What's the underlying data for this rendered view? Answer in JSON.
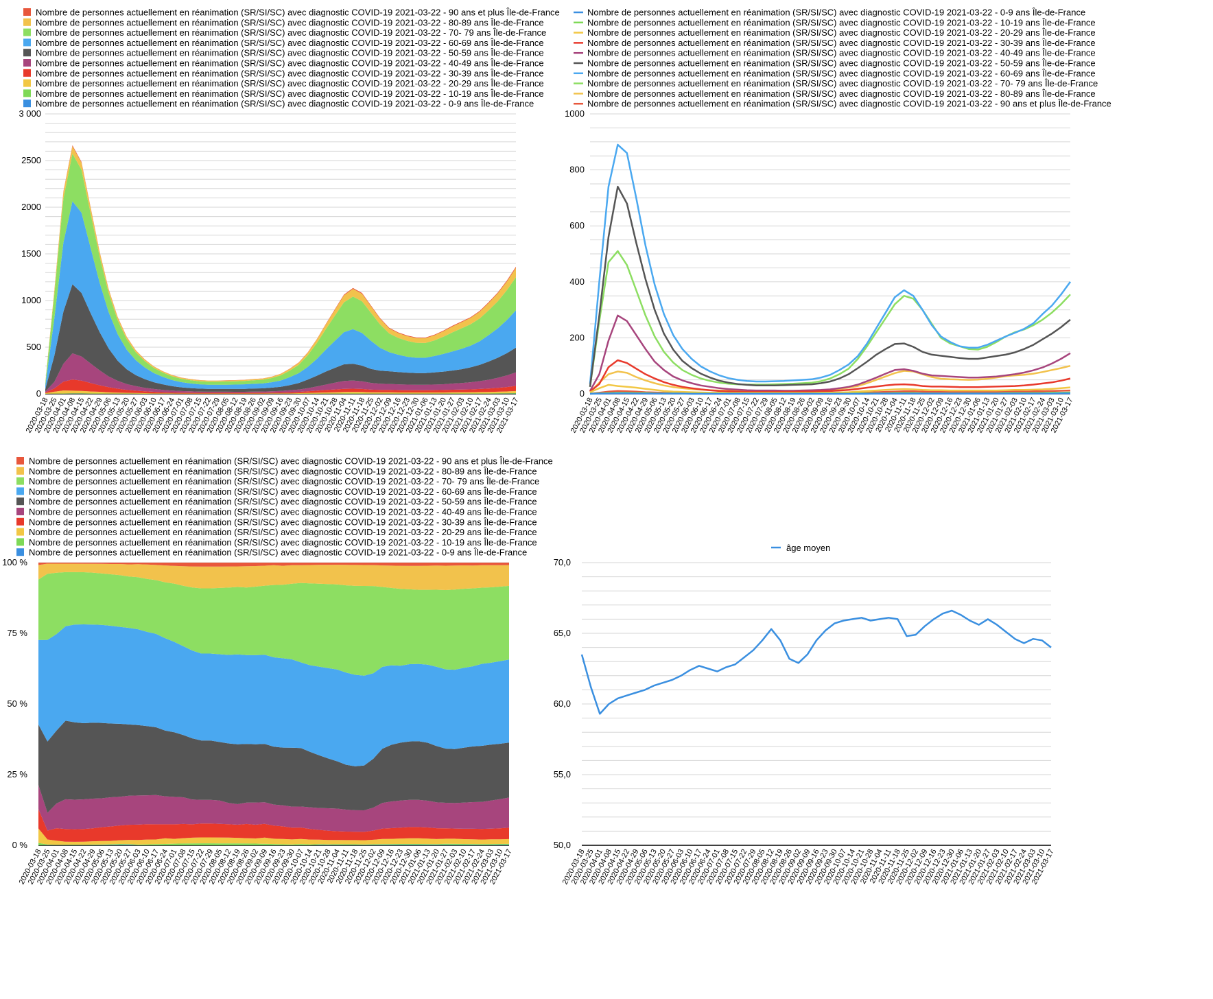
{
  "colors": {
    "grid": "#d6d6d6",
    "axis": "#000000",
    "age_line": "#3a8fe0"
  },
  "x_dates": [
    "2020-03-18",
    "2020-03-25",
    "2020-04-01",
    "2020-04-08",
    "2020-04-15",
    "2020-04-22",
    "2020-04-29",
    "2020-05-06",
    "2020-05-13",
    "2020-05-20",
    "2020-05-27",
    "2020-06-03",
    "2020-06-10",
    "2020-06-17",
    "2020-06-24",
    "2020-07-01",
    "2020-07-08",
    "2020-07-15",
    "2020-07-22",
    "2020-07-29",
    "2020-08-05",
    "2020-08-12",
    "2020-08-19",
    "2020-08-26",
    "2020-09-02",
    "2020-09-09",
    "2020-09-16",
    "2020-09-23",
    "2020-09-30",
    "2020-10-07",
    "2020-10-14",
    "2020-10-21",
    "2020-10-28",
    "2020-11-04",
    "2020-11-11",
    "2020-11-18",
    "2020-11-25",
    "2020-12-02",
    "2020-12-09",
    "2020-12-16",
    "2020-12-23",
    "2020-12-30",
    "2021-01-06",
    "2021-01-13",
    "2021-01-20",
    "2021-01-27",
    "2021-02-03",
    "2021-02-10",
    "2021-02-17",
    "2021-02-24",
    "2021-03-03",
    "2021-03-10",
    "2021-03-17"
  ],
  "age_groups": {
    "g0": {
      "label": "Nombre de personnes actuellement en réanimation (SR/SI/SC) avec diagnostic COVID-19 2021-03-22 - 0-9 ans Île-de-France",
      "color": "#3a8fe0"
    },
    "g1": {
      "label": "Nombre de personnes actuellement en réanimation (SR/SI/SC) avec diagnostic COVID-19 2021-03-22 - 10-19 ans Île-de-France",
      "color": "#7ed957"
    },
    "g2": {
      "label": "Nombre de personnes actuellement en réanimation (SR/SI/SC) avec diagnostic COVID-19 2021-03-22 - 20-29 ans Île-de-France",
      "color": "#f2c744"
    },
    "g3": {
      "label": "Nombre de personnes actuellement en réanimation (SR/SI/SC) avec diagnostic COVID-19 2021-03-22 - 30-39 ans Île-de-France",
      "color": "#e8392b"
    },
    "g4": {
      "label": "Nombre de personnes actuellement en réanimation (SR/SI/SC) avec diagnostic COVID-19 2021-03-22 - 40-49 ans Île-de-France",
      "color": "#a7457d"
    },
    "g5": {
      "label": "Nombre de personnes actuellement en réanimation (SR/SI/SC) avec diagnostic COVID-19 2021-03-22 - 50-59 ans Île-de-France",
      "color": "#555555"
    },
    "g6": {
      "label": "Nombre de personnes actuellement en réanimation (SR/SI/SC) avec diagnostic COVID-19 2021-03-22 - 60-69 ans Île-de-France",
      "color": "#4aa8f0"
    },
    "g7": {
      "label": "Nombre de personnes actuellement en réanimation (SR/SI/SC) avec diagnostic COVID-19 2021-03-22 - 70- 79 ans Île-de-France",
      "color": "#8dde62"
    },
    "g8": {
      "label": "Nombre de personnes actuellement en réanimation (SR/SI/SC) avec diagnostic COVID-19 2021-03-22 - 80-89 ans Île-de-France",
      "color": "#f2c24c"
    },
    "g9": {
      "label": "Nombre de personnes actuellement en réanimation (SR/SI/SC) avec diagnostic COVID-19 2021-03-22 - 90 ans et plus Île-de-France",
      "color": "#e8573c"
    }
  },
  "chart_data": [
    {
      "id": "stacked",
      "type": "area",
      "stacked": true,
      "title": "",
      "ylim": [
        0,
        3000
      ],
      "yticks": [
        0,
        500,
        1000,
        1500,
        2000,
        2500,
        3000
      ],
      "ytick_labels": [
        "0",
        "500",
        "1000",
        "1500",
        "2000",
        "2500",
        "3 000"
      ],
      "legend_order": [
        "g9",
        "g8",
        "g7",
        "g6",
        "g5",
        "g4",
        "g3",
        "g2",
        "g1",
        "g0"
      ],
      "series": [
        {
          "group": "g0",
          "values": [
            0,
            1,
            1,
            2,
            2,
            1,
            1,
            1,
            1,
            1,
            1,
            0,
            0,
            0,
            0,
            0,
            0,
            0,
            0,
            0,
            0,
            0,
            0,
            0,
            0,
            0,
            0,
            0,
            0,
            0,
            0,
            1,
            1,
            1,
            1,
            1,
            1,
            1,
            1,
            1,
            1,
            1,
            1,
            1,
            1,
            1,
            1,
            1,
            1,
            1,
            1,
            2,
            2
          ]
        },
        {
          "group": "g1",
          "values": [
            1,
            2,
            3,
            4,
            4,
            3,
            3,
            2,
            2,
            2,
            1,
            1,
            1,
            1,
            1,
            1,
            1,
            1,
            1,
            1,
            1,
            1,
            1,
            1,
            1,
            1,
            1,
            1,
            1,
            2,
            2,
            2,
            2,
            3,
            3,
            3,
            2,
            2,
            2,
            2,
            2,
            2,
            2,
            2,
            2,
            3,
            3,
            3,
            3,
            3,
            4,
            4,
            5
          ]
        },
        {
          "group": "g2",
          "values": [
            6,
            20,
            32,
            28,
            25,
            22,
            18,
            14,
            10,
            8,
            7,
            6,
            5,
            4,
            4,
            3,
            3,
            3,
            3,
            3,
            3,
            3,
            3,
            3,
            3,
            4,
            4,
            5,
            6,
            8,
            10,
            12,
            14,
            16,
            17,
            16,
            14,
            13,
            13,
            12,
            12,
            12,
            12,
            12,
            12,
            13,
            14,
            14,
            15,
            16,
            18,
            20,
            23
          ]
        },
        {
          "group": "g3",
          "values": [
            8,
            35,
            95,
            120,
            110,
            90,
            70,
            55,
            42,
            32,
            25,
            20,
            16,
            13,
            10,
            9,
            8,
            7,
            7,
            7,
            7,
            7,
            7,
            8,
            8,
            9,
            10,
            12,
            14,
            18,
            22,
            26,
            30,
            33,
            34,
            32,
            28,
            26,
            26,
            25,
            24,
            24,
            24,
            25,
            26,
            27,
            28,
            30,
            33,
            37,
            41,
            47,
            55
          ]
        },
        {
          "group": "g4",
          "values": [
            10,
            70,
            190,
            280,
            260,
            210,
            160,
            115,
            85,
            62,
            48,
            38,
            30,
            25,
            20,
            17,
            15,
            13,
            12,
            12,
            12,
            11,
            11,
            12,
            13,
            14,
            16,
            20,
            25,
            33,
            45,
            58,
            72,
            85,
            88,
            82,
            72,
            66,
            64,
            62,
            60,
            58,
            58,
            60,
            62,
            66,
            70,
            76,
            84,
            94,
            108,
            125,
            145
          ]
        },
        {
          "group": "g5",
          "values": [
            25,
            280,
            560,
            740,
            680,
            540,
            410,
            300,
            215,
            158,
            118,
            92,
            72,
            58,
            47,
            40,
            35,
            32,
            30,
            30,
            30,
            31,
            32,
            33,
            34,
            38,
            44,
            55,
            70,
            92,
            115,
            140,
            160,
            178,
            180,
            168,
            150,
            140,
            136,
            132,
            128,
            125,
            125,
            130,
            135,
            140,
            148,
            160,
            175,
            195,
            215,
            238,
            265
          ]
        },
        {
          "group": "g6",
          "values": [
            35,
            400,
            740,
            890,
            860,
            700,
            530,
            390,
            285,
            210,
            160,
            125,
            98,
            80,
            66,
            56,
            50,
            46,
            44,
            44,
            45,
            46,
            48,
            50,
            52,
            58,
            68,
            85,
            105,
            135,
            180,
            235,
            290,
            345,
            370,
            350,
            300,
            245,
            205,
            185,
            170,
            165,
            165,
            175,
            190,
            205,
            218,
            232,
            252,
            285,
            315,
            355,
            400
          ]
        },
        {
          "group": "g7",
          "values": [
            25,
            260,
            470,
            510,
            460,
            370,
            280,
            205,
            150,
            112,
            85,
            68,
            55,
            46,
            40,
            36,
            34,
            33,
            33,
            33,
            34,
            35,
            36,
            38,
            40,
            45,
            55,
            70,
            90,
            125,
            170,
            220,
            270,
            320,
            350,
            340,
            300,
            250,
            200,
            180,
            170,
            160,
            158,
            168,
            185,
            205,
            220,
            230,
            245,
            265,
            290,
            320,
            355
          ]
        },
        {
          "group": "g8",
          "values": [
            6,
            40,
            70,
            80,
            75,
            60,
            48,
            38,
            30,
            24,
            20,
            17,
            15,
            13,
            12,
            11,
            11,
            11,
            11,
            11,
            11,
            11,
            11,
            12,
            12,
            13,
            15,
            18,
            22,
            28,
            38,
            50,
            62,
            74,
            82,
            80,
            70,
            60,
            54,
            52,
            51,
            50,
            51,
            54,
            58,
            63,
            66,
            68,
            72,
            78,
            85,
            92,
            100
          ]
        },
        {
          "group": "g9",
          "values": [
            1,
            4,
            8,
            10,
            9,
            8,
            6,
            5,
            4,
            3,
            3,
            2,
            2,
            2,
            2,
            2,
            2,
            2,
            2,
            2,
            2,
            2,
            2,
            2,
            2,
            2,
            2,
            3,
            3,
            4,
            5,
            6,
            7,
            8,
            9,
            9,
            8,
            7,
            7,
            7,
            7,
            7,
            7,
            7,
            7,
            8,
            8,
            8,
            9,
            9,
            10,
            11,
            12
          ]
        }
      ]
    },
    {
      "id": "lines",
      "type": "line",
      "title": "",
      "ylim": [
        0,
        1000
      ],
      "yticks": [
        0,
        200,
        400,
        600,
        800,
        1000
      ],
      "ytick_labels": [
        "0",
        "200",
        "400",
        "600",
        "800",
        "1000"
      ],
      "legend_order": [
        "g0",
        "g1",
        "g2",
        "g3",
        "g4",
        "g5",
        "g6",
        "g7",
        "g8",
        "g9"
      ],
      "series_ref": "stacked"
    },
    {
      "id": "percent",
      "type": "area",
      "stacked": true,
      "normalized": true,
      "title": "",
      "ylim": [
        0,
        100
      ],
      "yticks": [
        0,
        25,
        50,
        75,
        100
      ],
      "ytick_labels": [
        "0 %",
        "25 %",
        "50 %",
        "75 %",
        "100 %"
      ],
      "legend_order": [
        "g9",
        "g8",
        "g7",
        "g6",
        "g5",
        "g4",
        "g3",
        "g2",
        "g1",
        "g0"
      ],
      "series_ref": "stacked"
    },
    {
      "id": "age",
      "type": "line",
      "title": "",
      "ylim": [
        50,
        70
      ],
      "yticks": [
        50,
        55,
        60,
        65,
        70
      ],
      "ytick_labels": [
        "50,0",
        "55,0",
        "60,0",
        "65,0",
        "70,0"
      ],
      "series": [
        {
          "name": "âge moyen",
          "values": [
            63.5,
            61.2,
            59.3,
            60.0,
            60.4,
            60.6,
            60.8,
            61.0,
            61.3,
            61.5,
            61.7,
            62.0,
            62.4,
            62.7,
            62.5,
            62.3,
            62.6,
            62.8,
            63.3,
            63.8,
            64.5,
            65.3,
            64.5,
            63.2,
            62.9,
            63.5,
            64.5,
            65.2,
            65.7,
            65.9,
            66.0,
            66.1,
            65.9,
            66.0,
            66.1,
            66.0,
            64.8,
            64.9,
            65.5,
            66.0,
            66.4,
            66.6,
            66.3,
            65.9,
            65.6,
            66.0,
            65.6,
            65.1,
            64.6,
            64.3,
            64.6,
            64.5,
            64.0
          ]
        }
      ]
    }
  ]
}
